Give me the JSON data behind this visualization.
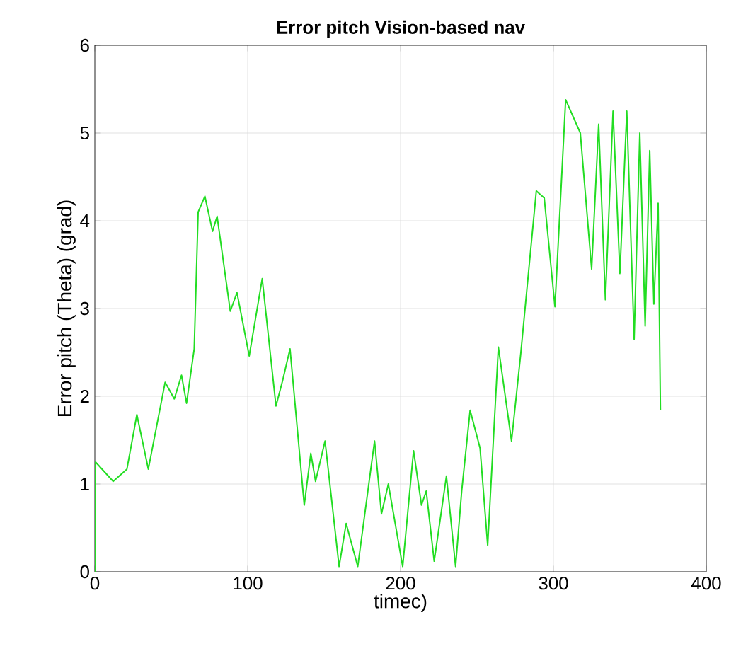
{
  "chart_data": {
    "type": "line",
    "title": "Error pitch Vision-based nav",
    "xlabel": "timec)",
    "ylabel": "Error pitch (Theta) (grad)",
    "xlim": [
      0,
      400
    ],
    "ylim": [
      0,
      6
    ],
    "xticks": [
      0,
      100,
      200,
      300,
      400
    ],
    "yticks": [
      0,
      1,
      2,
      3,
      4,
      5,
      6
    ],
    "grid": true,
    "series": [
      {
        "color": "#22dd22",
        "x": [
          0,
          0.5,
          12,
          21,
          27.5,
          35,
          46,
          52,
          56.7,
          60,
          65,
          67.6,
          72,
          77,
          80,
          88.6,
          93,
          101,
          109.5,
          118.5,
          123,
          127.7,
          137,
          141.3,
          144.4,
          150.6,
          159.8,
          164.4,
          172,
          183,
          187.5,
          192,
          201.4,
          208.5,
          213.7,
          216.8,
          222,
          230,
          236,
          240,
          245.5,
          252,
          257,
          264,
          272.6,
          278.6,
          288.8,
          294,
          301,
          308,
          317.6,
          325,
          329.6,
          334,
          339,
          343.5,
          348,
          352.8,
          356.5,
          360,
          363,
          365.7,
          368.5,
          370
        ],
        "values": [
          0,
          1.25,
          1.03,
          1.17,
          1.79,
          1.17,
          2.16,
          1.97,
          2.24,
          1.92,
          2.54,
          4.1,
          4.28,
          3.88,
          4.05,
          2.97,
          3.18,
          2.46,
          3.34,
          1.89,
          2.19,
          2.54,
          0.76,
          1.35,
          1.03,
          1.49,
          0.06,
          0.55,
          0.06,
          1.49,
          0.66,
          1.0,
          0.06,
          1.38,
          0.76,
          0.92,
          0.12,
          1.09,
          0.06,
          0.92,
          1.84,
          1.41,
          0.3,
          2.56,
          1.49,
          2.48,
          4.34,
          4.26,
          3.02,
          5.38,
          5.0,
          3.45,
          5.1,
          3.1,
          5.25,
          3.4,
          5.25,
          2.65,
          5.0,
          2.8,
          4.8,
          3.05,
          4.2,
          1.84
        ]
      }
    ]
  }
}
